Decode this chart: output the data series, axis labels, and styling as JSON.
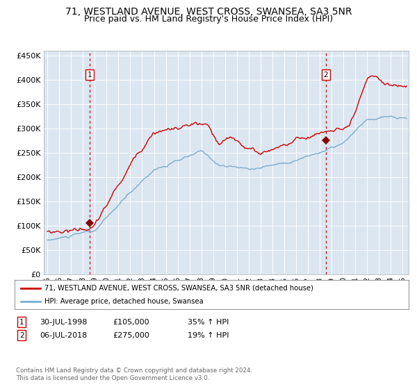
{
  "title": "71, WESTLAND AVENUE, WEST CROSS, SWANSEA, SA3 5NR",
  "subtitle": "Price paid vs. HM Land Registry's House Price Index (HPI)",
  "title_fontsize": 10,
  "subtitle_fontsize": 9,
  "plot_bg_color": "#dce6f1",
  "fig_bg_color": "#ffffff",
  "red_line_color": "#cc0000",
  "blue_line_color": "#7aadcc",
  "marker_color": "#880000",
  "vline_color": "#cc0000",
  "sale1_date_num": 1998.57,
  "sale1_price": 105000,
  "sale2_date_num": 2018.51,
  "sale2_price": 275000,
  "legend_line1": "71, WESTLAND AVENUE, WEST CROSS, SWANSEA, SA3 5NR (detached house)",
  "legend_line2": "HPI: Average price, detached house, Swansea",
  "footer": "Contains HM Land Registry data © Crown copyright and database right 2024.\nThis data is licensed under the Open Government Licence v3.0.",
  "ylim": [
    0,
    460000
  ],
  "xlim_start": 1994.7,
  "xlim_end": 2025.5,
  "yticks": [
    0,
    50000,
    100000,
    150000,
    200000,
    250000,
    300000,
    350000,
    400000,
    450000
  ],
  "xticks": [
    1995,
    1996,
    1997,
    1998,
    1999,
    2000,
    2001,
    2002,
    2003,
    2004,
    2005,
    2006,
    2007,
    2008,
    2009,
    2010,
    2011,
    2012,
    2013,
    2014,
    2015,
    2016,
    2017,
    2018,
    2019,
    2020,
    2021,
    2022,
    2023,
    2024,
    2025
  ]
}
